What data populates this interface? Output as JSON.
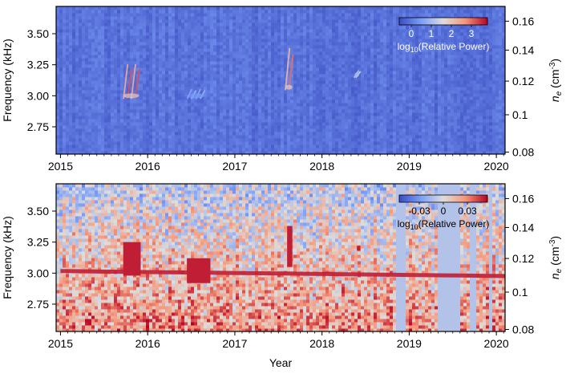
{
  "chart_data": [
    {
      "type": "heatmap",
      "panel": "top",
      "x": {
        "label": "",
        "range": [
          2014.95,
          2020.1
        ],
        "ticks": [
          2015,
          2016,
          2017,
          2018,
          2019,
          2020
        ],
        "tick_labels": [
          "2015",
          "2016",
          "2017",
          "2018",
          "2019",
          "2020"
        ]
      },
      "y_left": {
        "label": "Frequency (kHz)",
        "range": [
          2.53,
          3.72
        ],
        "ticks": [
          2.75,
          3.0,
          3.25,
          3.5
        ],
        "tick_labels": [
          "2.75",
          "3.00",
          "3.25",
          "3.50"
        ]
      },
      "y_right": {
        "label": "n_e (cm^-3)",
        "tick_labels": [
          "0.08",
          "0.1",
          "0.12",
          "0.14",
          "0.16"
        ],
        "tick_frequencies_khz": [
          2.546,
          2.847,
          3.118,
          3.368,
          3.601
        ]
      },
      "colorbar": {
        "label": "log10(Relative Power)",
        "range": [
          -0.6,
          3.8
        ],
        "ticks": [
          0,
          1,
          2,
          3
        ],
        "tick_labels": [
          "0",
          "1",
          "2",
          "3"
        ],
        "colormap": "coolwarm"
      },
      "background_value": -0.1,
      "features": [
        {
          "x": [
            2015.72,
            2015.9
          ],
          "y": [
            2.98,
            3.25
          ],
          "value": 3.2,
          "note": "bright emission streaks"
        },
        {
          "x": [
            2016.45,
            2016.65
          ],
          "y": [
            2.98,
            3.05
          ],
          "value": 0.8
        },
        {
          "x": [
            2017.58,
            2017.66
          ],
          "y": [
            3.05,
            3.38
          ],
          "value": 3.0
        },
        {
          "x": [
            2018.38,
            2018.42
          ],
          "y": [
            3.15,
            3.2
          ],
          "value": 1.5
        }
      ]
    },
    {
      "type": "heatmap",
      "panel": "bottom",
      "x": {
        "label": "Year",
        "range": [
          2014.95,
          2020.1
        ],
        "ticks": [
          2015,
          2016,
          2017,
          2018,
          2019,
          2020
        ],
        "tick_labels": [
          "2015",
          "2016",
          "2017",
          "2018",
          "2019",
          "2020"
        ]
      },
      "y_left": {
        "label": "Frequency (kHz)",
        "range": [
          2.53,
          3.72
        ],
        "ticks": [
          2.75,
          3.0,
          3.25,
          3.5
        ],
        "tick_labels": [
          "2.75",
          "3.00",
          "3.25",
          "3.50"
        ]
      },
      "y_right": {
        "label": "n_e (cm^-3)",
        "tick_labels": [
          "0.08",
          "0.1",
          "0.12",
          "0.14",
          "0.16"
        ],
        "tick_frequencies_khz": [
          2.546,
          2.847,
          3.118,
          3.368,
          3.601
        ]
      },
      "colorbar": {
        "label": "log10(Relative Power)",
        "range": [
          -0.055,
          0.055
        ],
        "ticks": [
          -0.03,
          0,
          0.03
        ],
        "tick_labels": [
          "-0.03",
          "0",
          "0.03"
        ],
        "colormap": "coolwarm"
      },
      "background_value": 0.01,
      "emission_band": {
        "x": [
          2015.0,
          2020.1
        ],
        "freq_start_khz": 3.02,
        "freq_end_khz": 2.98,
        "value": 0.05
      },
      "features": [
        {
          "x": [
            2015.72,
            2015.92
          ],
          "y": [
            2.98,
            3.25
          ],
          "value": 0.05
        },
        {
          "x": [
            2016.45,
            2016.72
          ],
          "y": [
            2.92,
            3.12
          ],
          "value": 0.05
        },
        {
          "x": [
            2017.6,
            2017.66
          ],
          "y": [
            3.05,
            3.38
          ],
          "value": 0.05
        },
        {
          "x": [
            2018.4,
            2018.44
          ],
          "y": [
            3.18,
            3.22
          ],
          "value": 0.05
        }
      ],
      "data_gaps": [
        [
          2018.85,
          2018.95
        ],
        [
          2019.32,
          2019.58
        ],
        [
          2019.7,
          2019.76
        ],
        [
          2019.92,
          2019.97
        ]
      ]
    }
  ]
}
